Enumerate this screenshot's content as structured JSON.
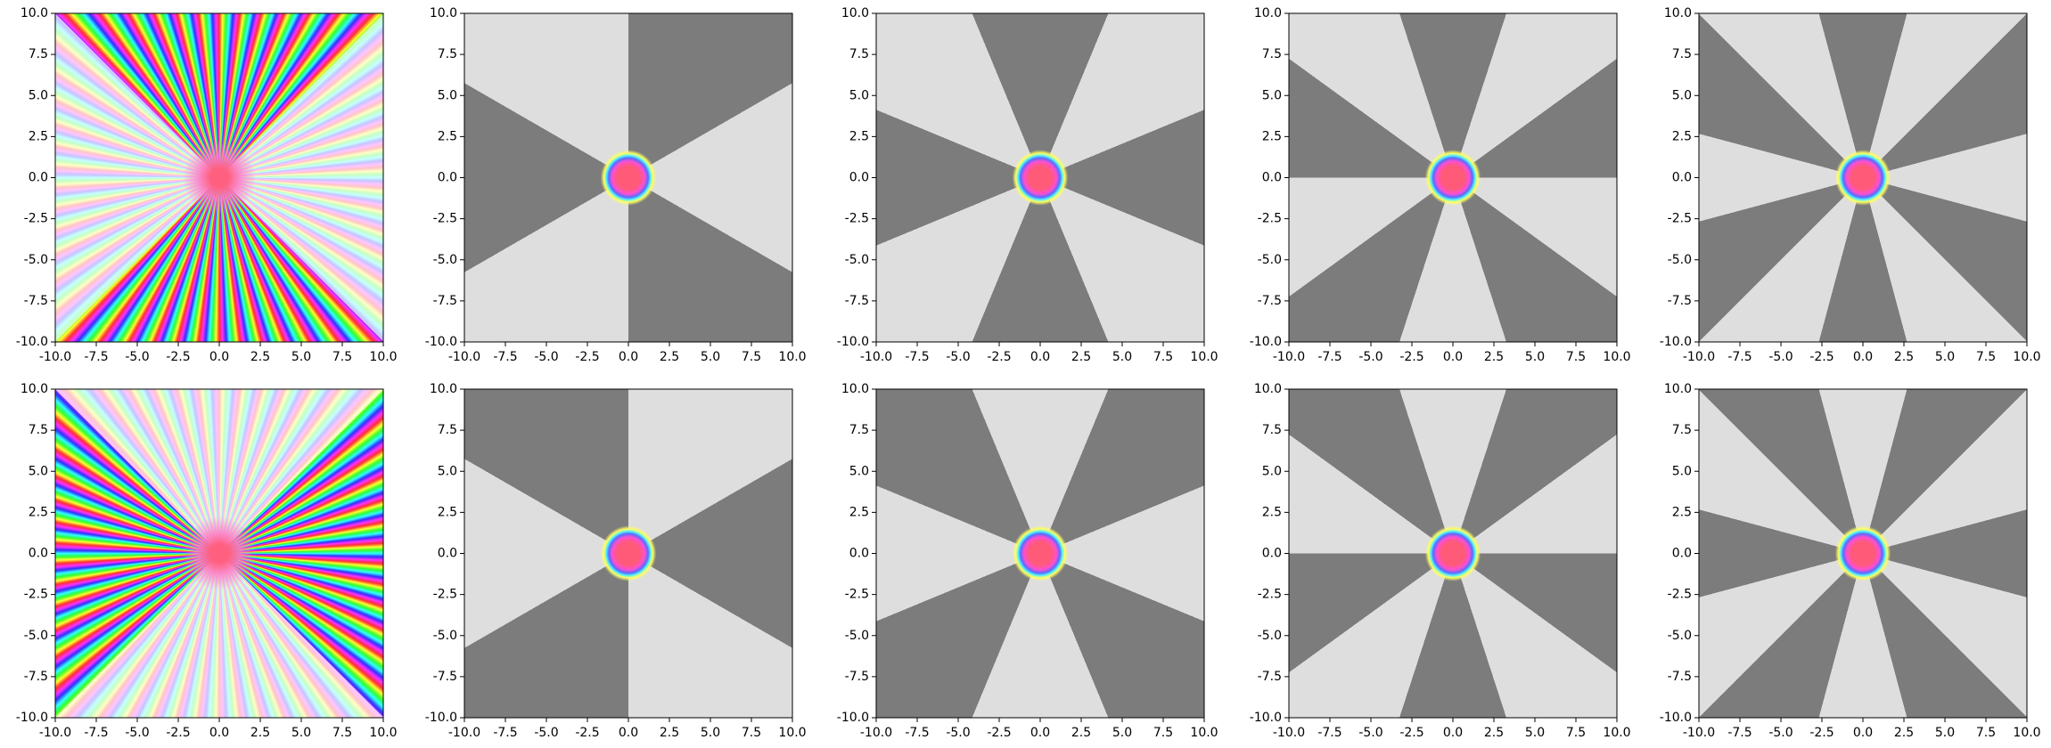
{
  "chart_data": [
    {
      "type": "image",
      "xlim": [
        -10,
        10
      ],
      "ylim": [
        -10,
        10
      ],
      "xticks": [
        {
          "value": -10,
          "label": "-10.0"
        },
        -7.5,
        {
          "value": -5,
          "label": "-5.0"
        },
        -2.5,
        {
          "value": 0,
          "label": "0.0"
        },
        2.5,
        {
          "value": 5,
          "label": "5.0"
        },
        7.5,
        {
          "value": 10,
          "label": "10.0"
        }
      ],
      "yticks": [
        {
          "value": -10,
          "label": "-10.0"
        },
        -7.5,
        {
          "value": -5,
          "label": "-5.0"
        },
        -2.5,
        {
          "value": 0,
          "label": "0.0"
        },
        2.5,
        {
          "value": 5,
          "label": "5.0"
        },
        7.5,
        {
          "value": 10,
          "label": "10.0"
        }
      ]
    },
    {
      "type": "image",
      "xlim": [
        -10,
        10
      ],
      "ylim": [
        -10,
        10
      ],
      "xticks": [
        {
          "value": -10,
          "label": "-10.0"
        },
        -7.5,
        {
          "value": -5,
          "label": "-5.0"
        },
        -2.5,
        {
          "value": 0,
          "label": "0.0"
        },
        2.5,
        {
          "value": 5,
          "label": "5.0"
        },
        7.5,
        {
          "value": 10,
          "label": "10.0"
        }
      ],
      "yticks": [
        {
          "value": -10,
          "label": "-10.0"
        },
        -7.5,
        {
          "value": -5,
          "label": "-5.0"
        },
        -2.5,
        {
          "value": 0,
          "label": "0.0"
        },
        2.5,
        {
          "value": 5,
          "label": "5.0"
        },
        7.5,
        {
          "value": 10,
          "label": "10.0"
        }
      ]
    },
    {
      "type": "image",
      "xlim": [
        -10,
        10
      ],
      "ylim": [
        -10,
        10
      ],
      "xticks": [
        {
          "value": -10,
          "label": "-10.0"
        },
        -7.5,
        {
          "value": -5,
          "label": "-5.0"
        },
        -2.5,
        {
          "value": 0,
          "label": "0.0"
        },
        2.5,
        {
          "value": 5,
          "label": "5.0"
        },
        7.5,
        {
          "value": 10,
          "label": "10.0"
        }
      ],
      "yticks": [
        {
          "value": -10,
          "label": "-10.0"
        },
        -7.5,
        {
          "value": -5,
          "label": "-5.0"
        },
        -2.5,
        {
          "value": 0,
          "label": "0.0"
        },
        2.5,
        {
          "value": 5,
          "label": "5.0"
        },
        7.5,
        {
          "value": 10,
          "label": "10.0"
        }
      ]
    },
    {
      "type": "image",
      "xlim": [
        -10,
        10
      ],
      "ylim": [
        -10,
        10
      ],
      "xticks": [
        {
          "value": -10,
          "label": "-10.0"
        },
        -7.5,
        {
          "value": -5,
          "label": "-5.0"
        },
        -2.5,
        {
          "value": 0,
          "label": "0.0"
        },
        2.5,
        {
          "value": 5,
          "label": "5.0"
        },
        7.5,
        {
          "value": 10,
          "label": "10.0"
        }
      ],
      "yticks": [
        {
          "value": -10,
          "label": "-10.0"
        },
        -7.5,
        {
          "value": -5,
          "label": "-5.0"
        },
        -2.5,
        {
          "value": 0,
          "label": "0.0"
        },
        2.5,
        {
          "value": 5,
          "label": "5.0"
        },
        7.5,
        {
          "value": 10,
          "label": "10.0"
        }
      ]
    },
    {
      "type": "image",
      "xlim": [
        -10,
        10
      ],
      "ylim": [
        -10,
        10
      ],
      "xticks": [
        {
          "value": -10,
          "label": "-10.0"
        },
        -7.5,
        {
          "value": -5,
          "label": "-5.0"
        },
        -2.5,
        {
          "value": 0,
          "label": "0.0"
        },
        2.5,
        {
          "value": 5,
          "label": "5.0"
        },
        7.5,
        {
          "value": 10,
          "label": "10.0"
        }
      ],
      "yticks": [
        {
          "value": -10,
          "label": "-10.0"
        },
        -7.5,
        {
          "value": -5,
          "label": "-5.0"
        },
        -2.5,
        {
          "value": 0,
          "label": "0.0"
        },
        2.5,
        {
          "value": 5,
          "label": "5.0"
        },
        7.5,
        {
          "value": 10,
          "label": "10.0"
        }
      ]
    },
    {
      "type": "image",
      "xlim": [
        -10,
        10
      ],
      "ylim": [
        -10,
        10
      ],
      "xticks": [
        {
          "value": -10,
          "label": "-10.0"
        },
        -7.5,
        {
          "value": -5,
          "label": "-5.0"
        },
        -2.5,
        {
          "value": 0,
          "label": "0.0"
        },
        2.5,
        {
          "value": 5,
          "label": "5.0"
        },
        7.5,
        {
          "value": 10,
          "label": "10.0"
        }
      ],
      "yticks": [
        {
          "value": -10,
          "label": "-10.0"
        },
        -7.5,
        {
          "value": -5,
          "label": "-5.0"
        },
        -2.5,
        {
          "value": 0,
          "label": "0.0"
        },
        2.5,
        {
          "value": 5,
          "label": "5.0"
        },
        7.5,
        {
          "value": 10,
          "label": "10.0"
        }
      ]
    },
    {
      "type": "image",
      "xlim": [
        -10,
        10
      ],
      "ylim": [
        -10,
        10
      ],
      "xticks": [
        {
          "value": -10,
          "label": "-10.0"
        },
        -7.5,
        {
          "value": -5,
          "label": "-5.0"
        },
        -2.5,
        {
          "value": 0,
          "label": "0.0"
        },
        2.5,
        {
          "value": 5,
          "label": "5.0"
        },
        7.5,
        {
          "value": 10,
          "label": "10.0"
        }
      ],
      "yticks": [
        {
          "value": -10,
          "label": "-10.0"
        },
        -7.5,
        {
          "value": -5,
          "label": "-5.0"
        },
        -2.5,
        {
          "value": 0,
          "label": "0.0"
        },
        2.5,
        {
          "value": 5,
          "label": "5.0"
        },
        7.5,
        {
          "value": 10,
          "label": "10.0"
        }
      ]
    },
    {
      "type": "image",
      "xlim": [
        -10,
        10
      ],
      "ylim": [
        -10,
        10
      ],
      "xticks": [
        {
          "value": -10,
          "label": "-10.0"
        },
        -7.5,
        {
          "value": -5,
          "label": "-5.0"
        },
        -2.5,
        {
          "value": 0,
          "label": "0.0"
        },
        2.5,
        {
          "value": 5,
          "label": "5.0"
        },
        7.5,
        {
          "value": 10,
          "label": "10.0"
        }
      ],
      "yticks": [
        {
          "value": -10,
          "label": "-10.0"
        },
        -7.5,
        {
          "value": -5,
          "label": "-5.0"
        },
        -2.5,
        {
          "value": 0,
          "label": "0.0"
        },
        2.5,
        {
          "value": 5,
          "label": "5.0"
        },
        7.5,
        {
          "value": 10,
          "label": "10.0"
        }
      ]
    },
    {
      "type": "image",
      "xlim": [
        -10,
        10
      ],
      "ylim": [
        -10,
        10
      ],
      "xticks": [
        {
          "value": -10,
          "label": "-10.0"
        },
        -7.5,
        {
          "value": -5,
          "label": "-5.0"
        },
        -2.5,
        {
          "value": 0,
          "label": "0.0"
        },
        2.5,
        {
          "value": 5,
          "label": "5.0"
        },
        7.5,
        {
          "value": 10,
          "label": "10.0"
        }
      ],
      "yticks": [
        {
          "value": -10,
          "label": "-10.0"
        },
        -7.5,
        {
          "value": -5,
          "label": "-5.0"
        },
        -2.5,
        {
          "value": 0,
          "label": "0.0"
        },
        2.5,
        {
          "value": 5,
          "label": "5.0"
        },
        7.5,
        {
          "value": 10,
          "label": "10.0"
        }
      ]
    },
    {
      "type": "image",
      "xlim": [
        -10,
        10
      ],
      "ylim": [
        -10,
        10
      ],
      "xticks": [
        {
          "value": -10,
          "label": "-10.0"
        },
        -7.5,
        {
          "value": -5,
          "label": "-5.0"
        },
        -2.5,
        {
          "value": 0,
          "label": "0.0"
        },
        2.5,
        {
          "value": 5,
          "label": "5.0"
        },
        7.5,
        {
          "value": 10,
          "label": "10.0"
        }
      ],
      "yticks": [
        {
          "value": -10,
          "label": "-10.0"
        },
        -7.5,
        {
          "value": -5,
          "label": "-5.0"
        },
        -2.5,
        {
          "value": 0,
          "label": "0.0"
        },
        2.5,
        {
          "value": 5,
          "label": "5.0"
        },
        7.5,
        {
          "value": 10,
          "label": "10.0"
        }
      ]
    }
  ]
}
